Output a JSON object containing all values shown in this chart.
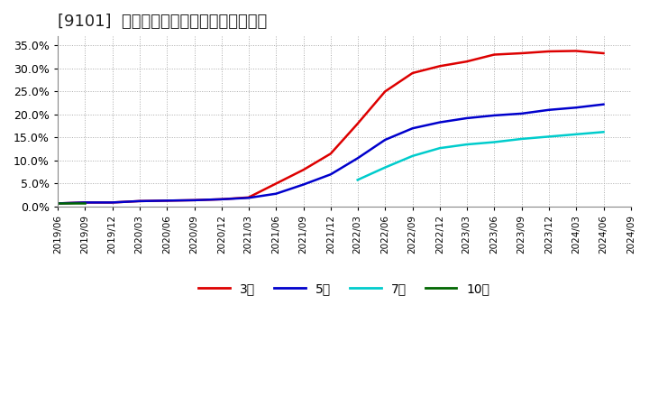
{
  "title": "[9101]  経常利益マージンの平均値の推移",
  "title_fontsize": 13,
  "background_color": "#ffffff",
  "plot_bg_color": "#ffffff",
  "grid_color": "#aaaaaa",
  "xlim_start": "2019-06-01",
  "xlim_end": "2024-09-01",
  "ylim": [
    0.0,
    0.37
  ],
  "yticks": [
    0.0,
    0.05,
    0.1,
    0.15,
    0.2,
    0.25,
    0.3,
    0.35
  ],
  "series": {
    "3year": {
      "color": "#dd0000",
      "label": "3年",
      "start": "2019-06-01",
      "points": [
        [
          "2019-06-01",
          0.007
        ],
        [
          "2019-09-01",
          0.009
        ],
        [
          "2019-12-01",
          0.009
        ],
        [
          "2020-03-01",
          0.012
        ],
        [
          "2020-06-01",
          0.013
        ],
        [
          "2020-09-01",
          0.014
        ],
        [
          "2020-12-01",
          0.016
        ],
        [
          "2021-03-01",
          0.02
        ],
        [
          "2021-06-01",
          0.05
        ],
        [
          "2021-09-01",
          0.08
        ],
        [
          "2021-12-01",
          0.115
        ],
        [
          "2022-03-01",
          0.18
        ],
        [
          "2022-06-01",
          0.25
        ],
        [
          "2022-09-01",
          0.29
        ],
        [
          "2022-12-01",
          0.305
        ],
        [
          "2023-03-01",
          0.315
        ],
        [
          "2023-06-01",
          0.33
        ],
        [
          "2023-09-01",
          0.333
        ],
        [
          "2023-12-01",
          0.337
        ],
        [
          "2024-03-01",
          0.338
        ],
        [
          "2024-06-01",
          0.333
        ]
      ]
    },
    "5year": {
      "color": "#0000cc",
      "label": "5年",
      "start": "2019-06-01",
      "points": [
        [
          "2019-06-01",
          0.007
        ],
        [
          "2019-09-01",
          0.009
        ],
        [
          "2019-12-01",
          0.009
        ],
        [
          "2020-03-01",
          0.012
        ],
        [
          "2020-06-01",
          0.013
        ],
        [
          "2020-09-01",
          0.014
        ],
        [
          "2020-12-01",
          0.016
        ],
        [
          "2021-03-01",
          0.019
        ],
        [
          "2021-06-01",
          0.028
        ],
        [
          "2021-09-01",
          0.048
        ],
        [
          "2021-12-01",
          0.07
        ],
        [
          "2022-03-01",
          0.105
        ],
        [
          "2022-06-01",
          0.145
        ],
        [
          "2022-09-01",
          0.17
        ],
        [
          "2022-12-01",
          0.183
        ],
        [
          "2023-03-01",
          0.192
        ],
        [
          "2023-06-01",
          0.198
        ],
        [
          "2023-09-01",
          0.202
        ],
        [
          "2023-12-01",
          0.21
        ],
        [
          "2024-03-01",
          0.215
        ],
        [
          "2024-06-01",
          0.222
        ]
      ]
    },
    "7year": {
      "color": "#00cccc",
      "label": "7年",
      "start": "2022-03-01",
      "points": [
        [
          "2022-03-01",
          0.058
        ],
        [
          "2022-06-01",
          0.085
        ],
        [
          "2022-09-01",
          0.11
        ],
        [
          "2022-12-01",
          0.127
        ],
        [
          "2023-03-01",
          0.135
        ],
        [
          "2023-06-01",
          0.14
        ],
        [
          "2023-09-01",
          0.147
        ],
        [
          "2023-12-01",
          0.152
        ],
        [
          "2024-03-01",
          0.157
        ],
        [
          "2024-06-01",
          0.162
        ]
      ]
    },
    "10year": {
      "color": "#006600",
      "label": "10年",
      "start": "2019-06-01",
      "points": [
        [
          "2019-06-01",
          0.007
        ],
        [
          "2019-09-01",
          0.007
        ]
      ]
    }
  },
  "xticks": [
    "2019/06",
    "2019/09",
    "2019/12",
    "2020/03",
    "2020/06",
    "2020/09",
    "2020/12",
    "2021/03",
    "2021/06",
    "2021/09",
    "2021/12",
    "2022/03",
    "2022/06",
    "2022/09",
    "2022/12",
    "2023/03",
    "2023/06",
    "2023/09",
    "2023/12",
    "2024/03",
    "2024/06",
    "2024/09"
  ],
  "legend_labels": [
    "3年",
    "5年",
    "7年",
    "10年"
  ],
  "legend_colors": [
    "#dd0000",
    "#0000cc",
    "#00cccc",
    "#006600"
  ]
}
